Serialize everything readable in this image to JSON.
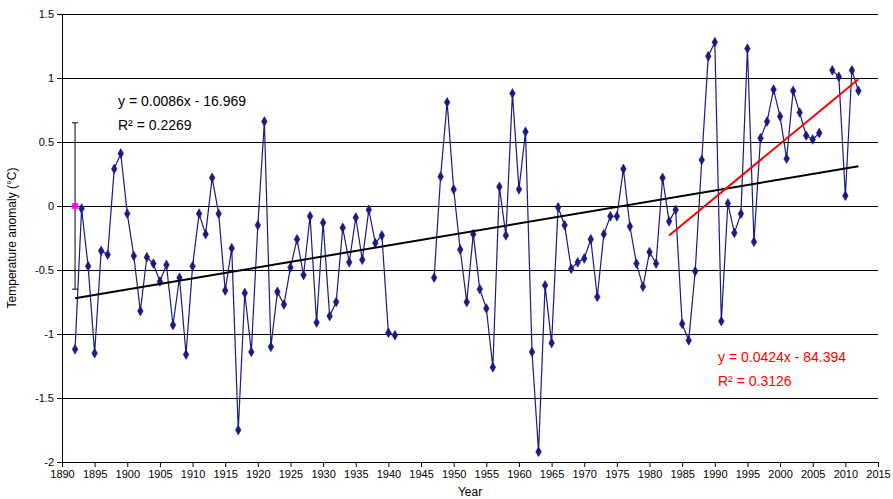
{
  "chart_data": {
    "type": "line",
    "x_label": "Year",
    "y_label": "Temperature anomaly (°C)",
    "xlim": [
      1890,
      2015
    ],
    "xticks": [
      1890,
      1895,
      1900,
      1905,
      1910,
      1915,
      1920,
      1925,
      1930,
      1935,
      1940,
      1945,
      1950,
      1955,
      1960,
      1965,
      1970,
      1975,
      1980,
      1985,
      1990,
      1995,
      2000,
      2005,
      2010,
      2015
    ],
    "ylim": [
      -2,
      1.5
    ],
    "yticks": [
      -2,
      -1.5,
      -1,
      -0.5,
      0,
      0.5,
      1,
      1.5
    ],
    "grid": true,
    "x": [
      1892,
      1893,
      1894,
      1895,
      1896,
      1897,
      1898,
      1899,
      1900,
      1901,
      1902,
      1903,
      1904,
      1905,
      1906,
      1907,
      1908,
      1909,
      1910,
      1911,
      1912,
      1913,
      1914,
      1915,
      1916,
      1917,
      1918,
      1919,
      1920,
      1921,
      1922,
      1923,
      1924,
      1925,
      1926,
      1927,
      1928,
      1929,
      1930,
      1931,
      1932,
      1933,
      1934,
      1935,
      1936,
      1937,
      1938,
      1939,
      1940,
      1941,
      1942,
      1943,
      1944,
      1945,
      1946,
      1947,
      1948,
      1949,
      1950,
      1951,
      1952,
      1953,
      1954,
      1955,
      1956,
      1957,
      1958,
      1959,
      1960,
      1961,
      1962,
      1963,
      1964,
      1965,
      1966,
      1967,
      1968,
      1969,
      1970,
      1971,
      1972,
      1973,
      1974,
      1975,
      1976,
      1977,
      1978,
      1979,
      1980,
      1981,
      1982,
      1983,
      1984,
      1985,
      1986,
      1987,
      1988,
      1989,
      1990,
      1991,
      1992,
      1993,
      1994,
      1995,
      1996,
      1997,
      1998,
      1999,
      2000,
      2001,
      2002,
      2003,
      2004,
      2005,
      2006,
      2007,
      2008,
      2009,
      2010,
      2011,
      2012
    ],
    "series": [
      {
        "type": "line",
        "marker": "diamond",
        "color": "#1a1a80",
        "values": [
          -1.12,
          -0.02,
          -0.47,
          -1.15,
          -0.35,
          -0.38,
          0.29,
          0.41,
          -0.06,
          -0.39,
          -0.82,
          -0.4,
          -0.45,
          -0.59,
          -0.46,
          -0.93,
          -0.56,
          -1.16,
          -0.47,
          -0.06,
          -0.22,
          0.22,
          -0.06,
          -0.66,
          -0.33,
          -1.75,
          -0.68,
          -1.14,
          -0.15,
          0.66,
          -1.1,
          -0.67,
          -0.77,
          -0.48,
          -0.26,
          -0.54,
          -0.08,
          -0.91,
          -0.13,
          -0.86,
          -0.75,
          -0.17,
          -0.44,
          -0.09,
          -0.42,
          -0.03,
          -0.29,
          -0.23,
          -0.99,
          -1.01,
          null,
          null,
          null,
          null,
          null,
          -0.56,
          0.23,
          0.81,
          0.13,
          -0.34,
          -0.75,
          -0.22,
          -0.65,
          -0.8,
          -1.26,
          0.15,
          -0.23,
          0.88,
          0.13,
          0.58,
          -1.14,
          -1.92,
          -0.62,
          -1.07,
          -0.01,
          -0.15,
          -0.49,
          -0.44,
          -0.41,
          -0.26,
          -0.71,
          -0.22,
          -0.08,
          -0.08,
          0.29,
          -0.16,
          -0.45,
          -0.63,
          -0.36,
          -0.45,
          0.22,
          -0.12,
          -0.03,
          -0.92,
          -1.05,
          -0.51,
          0.36,
          1.17,
          1.28,
          -0.9,
          0.02,
          -0.21,
          -0.06,
          1.23,
          -0.28,
          0.53,
          0.66,
          0.91,
          0.7,
          0.37,
          0.9,
          0.73,
          0.55,
          0.52,
          0.57,
          null,
          1.06,
          1.01,
          0.08,
          1.06,
          0.9
        ]
      },
      {
        "type": "line",
        "marker": "none",
        "color": "#000000",
        "x": [
          1892,
          2012
        ],
        "values": [
          -0.72,
          0.31
        ]
      },
      {
        "type": "line",
        "marker": "none",
        "color": "#ff0000",
        "x": [
          1983,
          2012
        ],
        "values": [
          -0.23,
          0.99
        ]
      },
      {
        "type": "scatter",
        "marker": "square",
        "color": "#ff00ff",
        "x": [
          1892
        ],
        "values": [
          0
        ],
        "error": [
          0.65
        ]
      }
    ],
    "annotations": [
      {
        "text": "y = 0.0086x - 16.969",
        "color": "#000000"
      },
      {
        "text": "R² = 0.2269",
        "color": "#000000"
      },
      {
        "text": "y = 0.0424x - 84.394",
        "color": "#ff0000"
      },
      {
        "text": "R² = 0.3126",
        "color": "#ff0000"
      }
    ]
  }
}
